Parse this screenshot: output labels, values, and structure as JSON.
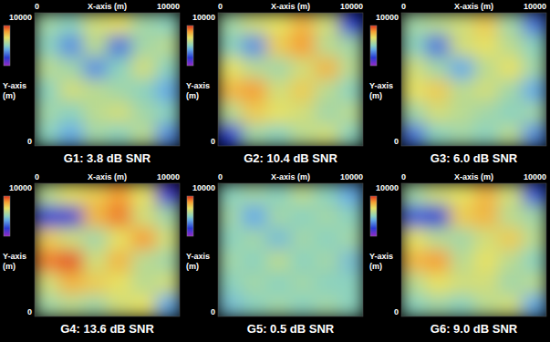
{
  "chart_data": [
    {
      "type": "heatmap",
      "title": "G1: 3.8 dB SNR",
      "x_label": "X-axis (m)",
      "y_label": "Y-axis (m)",
      "xlim": [
        0,
        10000
      ],
      "ylim": [
        0,
        10000
      ],
      "xticks": [
        0,
        10000
      ],
      "yticks": [
        0,
        10000
      ],
      "color_range": [
        -1,
        1
      ],
      "cells": [
        [
          0.1,
          0.0,
          0.3,
          0.4,
          0.1,
          0.0
        ],
        [
          0.0,
          -0.3,
          0.2,
          -0.4,
          0.1,
          0.2
        ],
        [
          0.2,
          0.1,
          -0.3,
          0.0,
          0.3,
          0.0
        ],
        [
          0.0,
          0.3,
          0.2,
          0.1,
          0.0,
          -0.2
        ],
        [
          0.1,
          0.0,
          0.2,
          0.3,
          0.1,
          0.0
        ],
        [
          0.0,
          -0.2,
          0.1,
          0.0,
          0.2,
          -0.3
        ]
      ]
    },
    {
      "type": "heatmap",
      "title": "G2: 10.4 dB SNR",
      "x_label": "X-axis (m)",
      "y_label": "Y-axis (m)",
      "xlim": [
        0,
        10000
      ],
      "ylim": [
        0,
        10000
      ],
      "xticks": [
        0,
        10000
      ],
      "yticks": [
        0,
        10000
      ],
      "color_range": [
        -1,
        1
      ],
      "cells": [
        [
          0.1,
          0.3,
          0.4,
          0.6,
          0.3,
          -0.6
        ],
        [
          0.0,
          -0.3,
          0.5,
          0.7,
          0.2,
          0.1
        ],
        [
          0.4,
          0.2,
          0.1,
          0.3,
          0.6,
          0.2
        ],
        [
          0.6,
          0.7,
          0.3,
          0.5,
          0.2,
          0.0
        ],
        [
          0.2,
          0.5,
          0.4,
          0.3,
          0.1,
          0.2
        ],
        [
          -0.6,
          0.1,
          0.0,
          0.2,
          0.3,
          0.0
        ]
      ]
    },
    {
      "type": "heatmap",
      "title": "G3: 6.0 dB SNR",
      "x_label": "X-axis (m)",
      "y_label": "Y-axis (m)",
      "xlim": [
        0,
        10000
      ],
      "ylim": [
        0,
        10000
      ],
      "xticks": [
        0,
        10000
      ],
      "yticks": [
        0,
        10000
      ],
      "color_range": [
        -1,
        1
      ],
      "cells": [
        [
          0.1,
          0.2,
          0.3,
          0.5,
          0.1,
          -0.4
        ],
        [
          0.0,
          -0.4,
          0.3,
          0.4,
          0.2,
          0.0
        ],
        [
          0.3,
          0.1,
          -0.2,
          0.2,
          0.4,
          0.1
        ],
        [
          0.4,
          0.5,
          0.2,
          0.3,
          0.1,
          -0.2
        ],
        [
          0.1,
          0.3,
          0.2,
          0.1,
          0.0,
          0.1
        ],
        [
          -0.4,
          0.0,
          0.1,
          0.0,
          0.2,
          -0.3
        ]
      ]
    },
    {
      "type": "heatmap",
      "title": "G4: 13.6 dB SNR",
      "x_label": "X-axis (m)",
      "y_label": "Y-axis (m)",
      "xlim": [
        0,
        10000
      ],
      "ylim": [
        0,
        10000
      ],
      "xticks": [
        0,
        10000
      ],
      "yticks": [
        0,
        10000
      ],
      "color_range": [
        -1,
        1
      ],
      "cells": [
        [
          0.2,
          0.4,
          0.5,
          0.7,
          0.4,
          -0.7
        ],
        [
          -0.6,
          -0.7,
          0.6,
          0.8,
          0.3,
          0.1
        ],
        [
          0.5,
          0.3,
          0.1,
          0.4,
          0.7,
          0.3
        ],
        [
          0.8,
          0.9,
          0.3,
          0.6,
          0.2,
          0.1
        ],
        [
          0.3,
          0.6,
          0.5,
          0.4,
          0.2,
          0.3
        ],
        [
          0.1,
          0.2,
          0.1,
          0.3,
          0.4,
          -0.2
        ]
      ]
    },
    {
      "type": "heatmap",
      "title": "G5: 0.5 dB SNR",
      "x_label": "X-axis (m)",
      "y_label": "Y-axis (m)",
      "xlim": [
        0,
        10000
      ],
      "ylim": [
        0,
        10000
      ],
      "xticks": [
        0,
        10000
      ],
      "yticks": [
        0,
        10000
      ],
      "color_range": [
        -1,
        1
      ],
      "cells": [
        [
          0.0,
          0.1,
          0.0,
          0.2,
          0.0,
          -0.2
        ],
        [
          0.1,
          -0.2,
          0.1,
          0.0,
          0.1,
          0.0
        ],
        [
          0.0,
          0.1,
          -0.1,
          0.1,
          0.0,
          0.1
        ],
        [
          0.1,
          0.0,
          0.2,
          0.0,
          0.1,
          -0.1
        ],
        [
          0.0,
          0.1,
          0.0,
          0.1,
          0.0,
          0.0
        ],
        [
          -0.1,
          0.0,
          0.1,
          0.0,
          0.1,
          0.0
        ]
      ]
    },
    {
      "type": "heatmap",
      "title": "G6: 9.0 dB SNR",
      "x_label": "X-axis (m)",
      "y_label": "Y-axis (m)",
      "xlim": [
        0,
        10000
      ],
      "ylim": [
        0,
        10000
      ],
      "xticks": [
        0,
        10000
      ],
      "yticks": [
        0,
        10000
      ],
      "color_range": [
        -1,
        1
      ],
      "cells": [
        [
          0.1,
          0.3,
          0.4,
          0.6,
          0.3,
          -0.5
        ],
        [
          -0.5,
          -0.6,
          0.5,
          0.6,
          0.2,
          0.1
        ],
        [
          0.4,
          0.2,
          0.1,
          0.3,
          0.5,
          0.2
        ],
        [
          0.6,
          0.7,
          0.2,
          0.4,
          0.2,
          0.0
        ],
        [
          0.2,
          0.4,
          0.3,
          0.3,
          0.1,
          0.2
        ],
        [
          0.0,
          0.1,
          0.0,
          0.2,
          0.3,
          -0.2
        ]
      ]
    }
  ]
}
